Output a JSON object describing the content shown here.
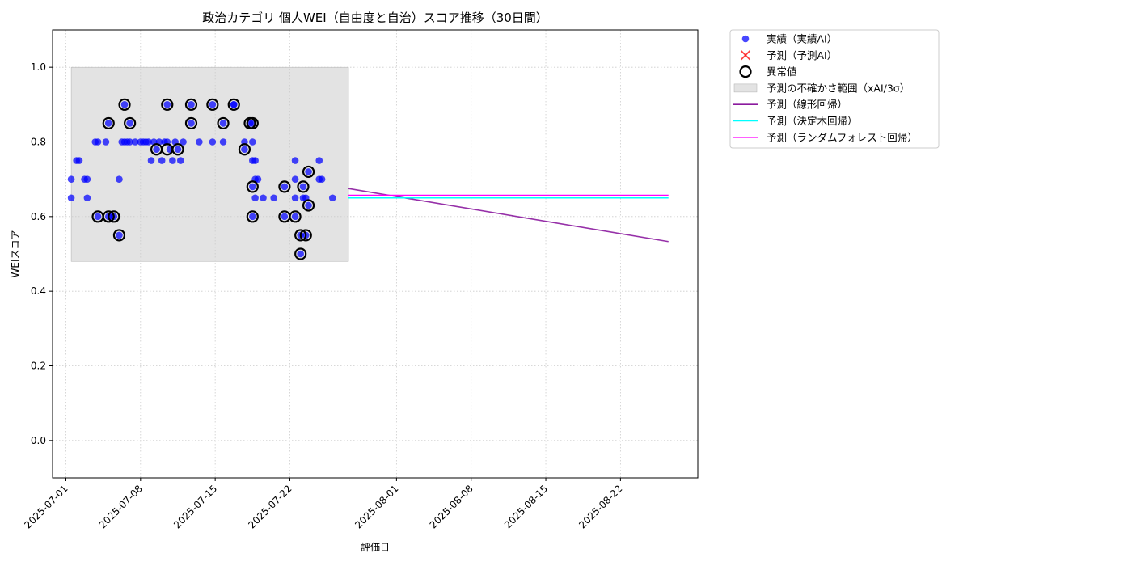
{
  "chart_data": {
    "type": "scatter",
    "title": "政治カテゴリ 個人WEI（自由度と自治）スコア推移（30日間）",
    "xlabel": "評価日",
    "ylabel": "WEIスコア",
    "xlim": [
      "2025-06-29T18:00",
      "2025-08-29T06:00"
    ],
    "ylim": [
      -0.1,
      1.1
    ],
    "x_ticks": [
      "2025-07-01",
      "2025-07-08",
      "2025-07-15",
      "2025-07-22",
      "2025-08-01",
      "2025-08-08",
      "2025-08-15",
      "2025-08-22"
    ],
    "y_ticks": [
      "0.0",
      "0.2",
      "0.4",
      "0.6",
      "0.8",
      "1.0"
    ],
    "grid": true,
    "legend_position": "outside-top-right",
    "legend": [
      {
        "key": "actual",
        "label": "実績（実績AI）",
        "kind": "dot",
        "color": "#0000ff"
      },
      {
        "key": "pred_ai",
        "label": "予測（予測AI）",
        "kind": "x",
        "color": "#ff0000"
      },
      {
        "key": "anomaly",
        "label": "異常値",
        "kind": "ring",
        "color": "#000000"
      },
      {
        "key": "band",
        "label": "予測の不確かさ範囲（xAI/3σ）",
        "kind": "patch",
        "color": "#cccccc"
      },
      {
        "key": "linear",
        "label": "予測（線形回帰）",
        "kind": "line",
        "color": "#8b1a9e"
      },
      {
        "key": "tree",
        "label": "予測（決定木回帰）",
        "kind": "line",
        "color": "#00ffff"
      },
      {
        "key": "forest",
        "label": "予測（ランダムフォレスト回帰）",
        "kind": "line",
        "color": "#ff00ff"
      }
    ],
    "uncertainty_band": {
      "x": [
        "2025-07-01T12:00",
        "2025-07-27T12:00"
      ],
      "y": [
        0.48,
        1.0
      ]
    },
    "actual": [
      [
        "2025-07-01T12:00",
        0.7
      ],
      [
        "2025-07-01T12:00",
        0.65
      ],
      [
        "2025-07-02T00:00",
        0.75
      ],
      [
        "2025-07-02T06:00",
        0.75
      ],
      [
        "2025-07-02T18:00",
        0.7
      ],
      [
        "2025-07-03T00:00",
        0.7
      ],
      [
        "2025-07-03T00:00",
        0.65
      ],
      [
        "2025-07-03T18:00",
        0.8
      ],
      [
        "2025-07-04T00:00",
        0.8
      ],
      [
        "2025-07-04T00:00",
        0.6
      ],
      [
        "2025-07-04T18:00",
        0.8
      ],
      [
        "2025-07-05T00:00",
        0.85
      ],
      [
        "2025-07-05T00:00",
        0.6
      ],
      [
        "2025-07-05T06:00",
        0.6
      ],
      [
        "2025-07-05T12:00",
        0.6
      ],
      [
        "2025-07-06T00:00",
        0.7
      ],
      [
        "2025-07-06T00:00",
        0.55
      ],
      [
        "2025-07-06T06:00",
        0.8
      ],
      [
        "2025-07-06T12:00",
        0.8
      ],
      [
        "2025-07-06T12:00",
        0.9
      ],
      [
        "2025-07-06T18:00",
        0.8
      ],
      [
        "2025-07-07T00:00",
        0.8
      ],
      [
        "2025-07-07T00:00",
        0.85
      ],
      [
        "2025-07-07T12:00",
        0.8
      ],
      [
        "2025-07-08T00:00",
        0.8
      ],
      [
        "2025-07-08T06:00",
        0.8
      ],
      [
        "2025-07-08T12:00",
        0.8
      ],
      [
        "2025-07-08T18:00",
        0.8
      ],
      [
        "2025-07-09T00:00",
        0.75
      ],
      [
        "2025-07-09T06:00",
        0.8
      ],
      [
        "2025-07-09T12:00",
        0.78
      ],
      [
        "2025-07-09T18:00",
        0.8
      ],
      [
        "2025-07-10T00:00",
        0.75
      ],
      [
        "2025-07-10T06:00",
        0.8
      ],
      [
        "2025-07-10T12:00",
        0.8
      ],
      [
        "2025-07-10T12:00",
        0.9
      ],
      [
        "2025-07-10T18:00",
        0.78
      ],
      [
        "2025-07-11T00:00",
        0.75
      ],
      [
        "2025-07-11T06:00",
        0.8
      ],
      [
        "2025-07-11T12:00",
        0.78
      ],
      [
        "2025-07-11T18:00",
        0.75
      ],
      [
        "2025-07-12T00:00",
        0.8
      ],
      [
        "2025-07-12T18:00",
        0.9
      ],
      [
        "2025-07-12T18:00",
        0.85
      ],
      [
        "2025-07-13T12:00",
        0.8
      ],
      [
        "2025-07-14T18:00",
        0.9
      ],
      [
        "2025-07-14T18:00",
        0.8
      ],
      [
        "2025-07-15T18:00",
        0.85
      ],
      [
        "2025-07-15T18:00",
        0.8
      ],
      [
        "2025-07-16T18:00",
        0.9
      ],
      [
        "2025-07-16T18:00",
        0.9
      ],
      [
        "2025-07-17T18:00",
        0.8
      ],
      [
        "2025-07-17T18:00",
        0.78
      ],
      [
        "2025-07-18T06:00",
        0.85
      ],
      [
        "2025-07-18T12:00",
        0.85
      ],
      [
        "2025-07-18T12:00",
        0.8
      ],
      [
        "2025-07-18T12:00",
        0.75
      ],
      [
        "2025-07-18T12:00",
        0.68
      ],
      [
        "2025-07-18T12:00",
        0.6
      ],
      [
        "2025-07-18T18:00",
        0.7
      ],
      [
        "2025-07-18T18:00",
        0.65
      ],
      [
        "2025-07-18T18:00",
        0.75
      ],
      [
        "2025-07-19T00:00",
        0.7
      ],
      [
        "2025-07-19T12:00",
        0.65
      ],
      [
        "2025-07-20T12:00",
        0.65
      ],
      [
        "2025-07-21T12:00",
        0.68
      ],
      [
        "2025-07-21T12:00",
        0.6
      ],
      [
        "2025-07-22T12:00",
        0.65
      ],
      [
        "2025-07-22T12:00",
        0.6
      ],
      [
        "2025-07-22T12:00",
        0.7
      ],
      [
        "2025-07-22T12:00",
        0.75
      ],
      [
        "2025-07-23T00:00",
        0.55
      ],
      [
        "2025-07-23T00:00",
        0.5
      ],
      [
        "2025-07-23T06:00",
        0.68
      ],
      [
        "2025-07-23T06:00",
        0.65
      ],
      [
        "2025-07-23T12:00",
        0.65
      ],
      [
        "2025-07-23T12:00",
        0.55
      ],
      [
        "2025-07-23T18:00",
        0.63
      ],
      [
        "2025-07-23T18:00",
        0.72
      ],
      [
        "2025-07-24T18:00",
        0.7
      ],
      [
        "2025-07-24T18:00",
        0.75
      ],
      [
        "2025-07-25T00:00",
        0.7
      ],
      [
        "2025-07-26T00:00",
        0.65
      ]
    ],
    "anomalies": [
      [
        "2025-07-04T00:00",
        0.6
      ],
      [
        "2025-07-05T00:00",
        0.85
      ],
      [
        "2025-07-05T00:00",
        0.6
      ],
      [
        "2025-07-05T12:00",
        0.6
      ],
      [
        "2025-07-06T00:00",
        0.55
      ],
      [
        "2025-07-06T12:00",
        0.9
      ],
      [
        "2025-07-07T00:00",
        0.85
      ],
      [
        "2025-07-09T12:00",
        0.78
      ],
      [
        "2025-07-10T12:00",
        0.9
      ],
      [
        "2025-07-10T12:00",
        0.78
      ],
      [
        "2025-07-11T12:00",
        0.78
      ],
      [
        "2025-07-12T18:00",
        0.9
      ],
      [
        "2025-07-12T18:00",
        0.85
      ],
      [
        "2025-07-14T18:00",
        0.9
      ],
      [
        "2025-07-15T18:00",
        0.85
      ],
      [
        "2025-07-16T18:00",
        0.9
      ],
      [
        "2025-07-17T18:00",
        0.78
      ],
      [
        "2025-07-18T06:00",
        0.85
      ],
      [
        "2025-07-18T12:00",
        0.85
      ],
      [
        "2025-07-18T12:00",
        0.68
      ],
      [
        "2025-07-18T12:00",
        0.6
      ],
      [
        "2025-07-21T12:00",
        0.68
      ],
      [
        "2025-07-21T12:00",
        0.6
      ],
      [
        "2025-07-22T12:00",
        0.6
      ],
      [
        "2025-07-23T00:00",
        0.55
      ],
      [
        "2025-07-23T00:00",
        0.5
      ],
      [
        "2025-07-23T06:00",
        0.68
      ],
      [
        "2025-07-23T12:00",
        0.55
      ],
      [
        "2025-07-23T18:00",
        0.63
      ],
      [
        "2025-07-23T18:00",
        0.72
      ]
    ],
    "series": [
      {
        "key": "linear",
        "name": "予測（線形回帰）",
        "color": "#8b1a9e",
        "x": [
          "2025-07-27T12:00",
          "2025-08-26T12:00"
        ],
        "y": [
          0.675,
          0.533
        ]
      },
      {
        "key": "tree",
        "name": "予測（決定木回帰）",
        "color": "#00ffff",
        "x": [
          "2025-07-27T12:00",
          "2025-08-26T12:00"
        ],
        "y": [
          0.65,
          0.65
        ]
      },
      {
        "key": "forest",
        "name": "予測（ランダムフォレスト回帰）",
        "color": "#ff00ff",
        "x": [
          "2025-07-27T12:00",
          "2025-08-26T12:00"
        ],
        "y": [
          0.657,
          0.657
        ]
      }
    ]
  }
}
